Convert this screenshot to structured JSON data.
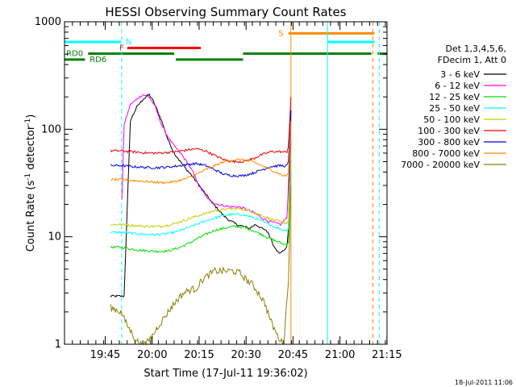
{
  "chart_data": {
    "type": "line",
    "title": "HESSI Observing Summary Count Rates",
    "xlabel": "Start Time (17-Jul-11 19:36:02)",
    "ylabel_main": "Count Rate (s",
    "ylabel_sup1": "-1",
    "ylabel_mid": " detector",
    "ylabel_sup2": "-1",
    "ylabel_end": ")",
    "yscale": "log",
    "ylim": [
      1,
      1000
    ],
    "xlim": [
      -4.05,
      99.0
    ],
    "x_unit": "minutes after 19:36:02",
    "x_tick_labels": [
      "19:45",
      "20:00",
      "20:15",
      "20:30",
      "20:45",
      "21:00",
      "21:15"
    ],
    "x_tick_positions": [
      8.97,
      23.97,
      38.97,
      53.97,
      68.97,
      83.97,
      98.97
    ],
    "y_tick_labels": [
      "1",
      "10",
      "100",
      "1000"
    ],
    "y_tick_values": [
      1,
      10,
      100,
      1000
    ],
    "legend_lines": [
      "Det 1,3,4,5,6,",
      "FDecim 1, Att 0"
    ],
    "footer_date": "18-Jul-2011 11:06",
    "flags": [
      {
        "label": "N",
        "color": "#00ffff",
        "segments": [
          [
            -4.05,
            14.0
          ],
          [
            80.0,
            95.0
          ]
        ],
        "level": 650
      },
      {
        "label": "F",
        "color": "#ff0000",
        "segments": [
          [
            16.0,
            39.5
          ]
        ],
        "level": 570
      },
      {
        "label": "S",
        "color": "#ff8c00",
        "segments": [
          [
            67.5,
            95.0
          ]
        ],
        "level": 780
      },
      {
        "label": "RD0",
        "color": "#008000",
        "segments": [
          [
            3.5,
            31.0
          ],
          [
            53.0,
            94.0
          ],
          [
            96.0,
            99.0
          ]
        ],
        "level": 505
      },
      {
        "label": "RD6",
        "color": "#008000",
        "segments": [
          [
            -4.05,
            2.5
          ],
          [
            31.5,
            53.0
          ]
        ],
        "level": 445
      }
    ],
    "vlines": [
      {
        "x": 14.2,
        "color": "#00ffff",
        "dashed": true
      },
      {
        "x": 68.3,
        "color": "#ff8c00",
        "dashed": false
      },
      {
        "x": 80.0,
        "color": "#00ffff",
        "dashed": false
      },
      {
        "x": 94.5,
        "color": "#ff8c00",
        "dashed": true
      },
      {
        "x": 96.5,
        "color": "#00ffff",
        "dashed": true
      }
    ],
    "series": [
      {
        "name": "3 - 6 keV",
        "color": "#000000",
        "x": [
          10.7,
          11,
          13,
          14.3,
          15,
          17,
          19,
          21,
          23,
          24,
          25,
          27,
          29,
          31,
          33,
          35,
          37,
          39,
          41,
          43,
          45,
          47,
          49,
          51,
          53,
          55,
          57,
          59,
          61,
          63,
          65,
          66,
          67,
          67.5,
          68.3
        ],
        "y": [
          2.8,
          2.8,
          2.8,
          2.8,
          2.8,
          120,
          160,
          190,
          210,
          190,
          165,
          120,
          80,
          60,
          50,
          42,
          36,
          30,
          25,
          21,
          18,
          15.5,
          14,
          13,
          12.5,
          12,
          13,
          12,
          11,
          8,
          7,
          7.5,
          8,
          12,
          150
        ]
      },
      {
        "name": "6 - 12 keV",
        "color": "#ff00ff",
        "x": [
          14.3,
          15,
          17,
          19,
          21,
          23,
          24,
          25,
          27,
          29,
          31,
          33,
          35,
          37,
          39,
          41,
          43,
          45,
          47,
          49,
          51,
          53,
          55,
          57,
          59,
          61,
          63,
          65,
          66,
          67,
          67.5,
          68.3
        ],
        "y": [
          22,
          110,
          170,
          190,
          210,
          200,
          180,
          160,
          110,
          85,
          70,
          60,
          50,
          40,
          30,
          24,
          21,
          20,
          19.5,
          19,
          19,
          18.5,
          17.5,
          16.5,
          15,
          14,
          13.5,
          13,
          14,
          15,
          30,
          120
        ]
      },
      {
        "name": "12 - 25 keV",
        "color": "#00dd00",
        "x": [
          10.7,
          14,
          17,
          20,
          23,
          26,
          29,
          32,
          35,
          38,
          41,
          44,
          47,
          50,
          53,
          56,
          59,
          62,
          65,
          66,
          67,
          67.5,
          68.3
        ],
        "y": [
          8,
          8,
          7.7,
          7.5,
          7.4,
          7.3,
          7.4,
          7.8,
          8.5,
          9.5,
          10.5,
          11.5,
          12,
          12.5,
          12.3,
          11.5,
          10.5,
          9.5,
          8.8,
          8.5,
          8.5,
          9,
          40
        ]
      },
      {
        "name": "25 - 50 keV",
        "color": "#00ffff",
        "x": [
          10.7,
          14,
          17,
          20,
          23,
          26,
          29,
          32,
          35,
          38,
          41,
          44,
          47,
          50,
          53,
          56,
          59,
          62,
          65,
          66,
          67,
          67.5,
          68.3
        ],
        "y": [
          11,
          11,
          10.8,
          10.6,
          10.5,
          10.5,
          10.7,
          11.2,
          12,
          13,
          14,
          15,
          15.8,
          16.2,
          16,
          15.2,
          14,
          12.8,
          11.8,
          11.5,
          11.5,
          12,
          50
        ]
      },
      {
        "name": "50 - 100 keV",
        "color": "#cccc00",
        "x": [
          10.7,
          14,
          17,
          20,
          23,
          26,
          29,
          32,
          35,
          38,
          41,
          44,
          47,
          50,
          53,
          56,
          59,
          62,
          65,
          66,
          67,
          67.5,
          68.3
        ],
        "y": [
          13,
          13,
          12.8,
          12.6,
          12.5,
          12.5,
          12.8,
          13.5,
          14.5,
          15.5,
          16.5,
          17.5,
          18,
          18.3,
          18,
          17,
          15.8,
          14.6,
          13.8,
          13.5,
          13.5,
          14,
          60
        ]
      },
      {
        "name": "100 - 300 keV",
        "color": "#ee0000",
        "x": [
          10.7,
          14,
          17,
          20,
          23,
          26,
          29,
          32,
          35,
          38,
          41,
          44,
          47,
          50,
          53,
          56,
          59,
          62,
          65,
          66,
          67,
          67.5,
          68.3
        ],
        "y": [
          63,
          63,
          62,
          61,
          60,
          60,
          61,
          62,
          64,
          66,
          63,
          57,
          52,
          50,
          50,
          53,
          58,
          62,
          62,
          61,
          62,
          70,
          200
        ]
      },
      {
        "name": "300 - 800 keV",
        "color": "#0000dd",
        "x": [
          10.7,
          14,
          17,
          20,
          23,
          26,
          29,
          32,
          35,
          38,
          41,
          44,
          47,
          50,
          53,
          56,
          59,
          62,
          65,
          66,
          67,
          67.5,
          68.3
        ],
        "y": [
          46,
          46,
          45,
          44.5,
          44,
          44,
          44.5,
          45.5,
          47,
          48,
          46,
          42,
          38,
          37,
          37,
          39,
          42,
          45,
          46,
          45.5,
          46,
          50,
          150
        ]
      },
      {
        "name": "800 - 7000 keV",
        "color": "#ff8c00",
        "x": [
          10.7,
          14,
          17,
          20,
          23,
          26,
          29,
          32,
          35,
          38,
          41,
          44,
          47,
          50,
          53,
          56,
          59,
          62,
          65,
          66,
          67,
          67.5,
          68.3
        ],
        "y": [
          34,
          34,
          33.5,
          33,
          32.5,
          32,
          32,
          33,
          35,
          38,
          42,
          46,
          50,
          52,
          52,
          50,
          46,
          42,
          38,
          37,
          37,
          40,
          120
        ]
      },
      {
        "name": "7000 - 20000 keV",
        "color": "#8b8000",
        "x": [
          10.7,
          14,
          16,
          18,
          20,
          22,
          24,
          26,
          28,
          30,
          32,
          34,
          36,
          38,
          40,
          42,
          44,
          46,
          48,
          50,
          52,
          54,
          56,
          58,
          60,
          62,
          64,
          66,
          67.5,
          68.3
        ],
        "y": [
          2.2,
          2.0,
          1.5,
          1.2,
          1.0,
          1.0,
          1.2,
          1.5,
          1.8,
          2.2,
          2.6,
          3.0,
          3.2,
          3.3,
          4.0,
          4.4,
          4.8,
          4.8,
          4.8,
          4.8,
          4.6,
          4.0,
          3.6,
          3.0,
          2.4,
          1.6,
          1.2,
          1.0,
          4.0,
          30
        ]
      }
    ]
  }
}
